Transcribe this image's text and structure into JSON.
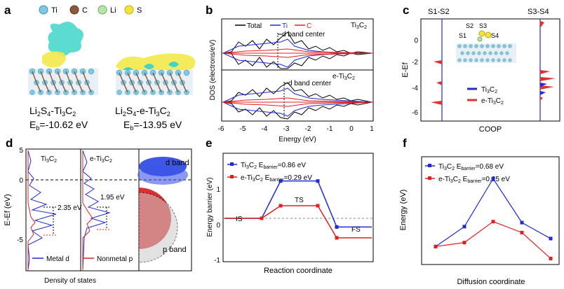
{
  "panels": {
    "a": {
      "letter": "a",
      "legend": [
        {
          "label": "Ti",
          "color": "#7ec8e3"
        },
        {
          "label": "C",
          "color": "#8b5a3c"
        },
        {
          "label": "Li",
          "color": "#b7e4a8"
        },
        {
          "label": "S",
          "color": "#f3e43a"
        }
      ],
      "structures": [
        {
          "formula_main": "Li",
          "sub1": "2",
          "mid": "S",
          "sub2": "4",
          "tail": "-Ti",
          "sub3": "3",
          "end": "C",
          "sub4": "2",
          "energy": "E",
          "energy_sub": "b",
          "energy_val": "=-10.62 eV"
        },
        {
          "formula_main": "Li",
          "sub1": "2",
          "mid": "S",
          "sub2": "4",
          "tail": "-e-Ti",
          "sub3": "3",
          "end": "C",
          "sub4": "2",
          "energy": "E",
          "energy_sub": "b",
          "energy_val": "=-13.95 eV"
        }
      ]
    },
    "b": {
      "letter": "b",
      "xlabel": "Energy (eV)",
      "ylabel": "DOS (electrons/eV)",
      "xticks": [
        "-6",
        "-5",
        "-4",
        "-3",
        "-2",
        "-1",
        "0",
        "1"
      ],
      "legend": [
        {
          "label": "Total",
          "color": "#000000"
        },
        {
          "label": "Ti",
          "color": "#1f2bd6"
        },
        {
          "label": "C",
          "color": "#e02020"
        }
      ],
      "top_label": "Ti",
      "top_sub1": "3",
      "top_label2": "C",
      "top_sub2": "2",
      "bottom_label": "e-Ti",
      "bottom_sub1": "3",
      "bottom_label2": "C",
      "bottom_sub2": "2",
      "dband_label": "d band center"
    },
    "c": {
      "letter": "c",
      "xlabel": "COOP",
      "ylabel": "E-Ef",
      "yticks": [
        "0",
        "-2",
        "-4",
        "-6"
      ],
      "headers": [
        "S1-S2",
        "S3-S4"
      ],
      "atoms": [
        "S2",
        "S3",
        "S1",
        "S4"
      ],
      "legend": [
        {
          "label": "Ti",
          "sub1": "3",
          "label2": "C",
          "sub2": "2",
          "color": "#1f2bd6"
        },
        {
          "label": "e-Ti",
          "sub1": "3",
          "label2": "C",
          "sub2": "2",
          "color": "#e03030"
        }
      ]
    },
    "d": {
      "letter": "d",
      "ylabel": "E-Ef (eV)",
      "xlabel": "Density of states",
      "yticks": [
        "5",
        "0",
        "-5"
      ],
      "col1_label": "Ti",
      "col1_sub1": "3",
      "col1_label2": "C",
      "col1_sub2": "2",
      "col2_label": "e-Ti",
      "col2_sub1": "3",
      "col2_label2": "C",
      "col2_sub2": "2",
      "gap1": "2.35 eV",
      "gap2": "1.95 eV",
      "dband": "d band",
      "pband": "p band",
      "legend": [
        {
          "label": "Metal d",
          "color": "#1f2bd6"
        },
        {
          "label": "Nonmetal p",
          "color": "#e02020"
        }
      ]
    },
    "e": {
      "letter": "e",
      "xlabel": "Reaction coordinate",
      "ylabel": "Energy barrier (eV)",
      "yticks": [
        "1",
        "0",
        "-1"
      ],
      "stage_labels": [
        "IS",
        "TS",
        "FS"
      ],
      "legend": [
        {
          "label": "Ti",
          "sub1": "3",
          "label2": "C",
          "sub2": "2",
          "barrier_txt": " E",
          "barrier_sub": "barrier",
          "val": "=0.86 eV",
          "color": "#1f2bd6"
        },
        {
          "label": "e-Ti",
          "sub1": "3",
          "label2": "C",
          "sub2": "2",
          "barrier_txt": " E",
          "barrier_sub": "barrier",
          "val": "=0.29 eV",
          "color": "#e02020"
        }
      ]
    },
    "f": {
      "letter": "f",
      "xlabel": "Diffusion coordinate",
      "ylabel": "Energy (eV)",
      "legend": [
        {
          "label": "Ti",
          "sub1": "3",
          "label2": "C",
          "sub2": "2",
          "barrier_txt": " E",
          "barrier_sub": "barrier",
          "val": "=0.68 eV",
          "color": "#1f2bd6"
        },
        {
          "label": "e-Ti",
          "sub1": "3",
          "label2": "C",
          "sub2": "2",
          "barrier_txt": " E",
          "barrier_sub": "barrier",
          "val": "=0.25 eV",
          "color": "#e02020"
        }
      ]
    }
  },
  "chart_data": [
    {
      "type": "line",
      "panel": "e",
      "x": [
        1,
        2,
        3,
        4,
        5,
        6
      ],
      "series": [
        {
          "name": "Ti3C2",
          "values": [
            0,
            0,
            0.86,
            0.86,
            -0.2,
            -0.2
          ],
          "color": "#1f2bd6"
        },
        {
          "name": "e-Ti3C2",
          "values": [
            0,
            0,
            0.29,
            0.29,
            -0.45,
            -0.45
          ],
          "color": "#e02020"
        }
      ],
      "xlabel": "Reaction coordinate",
      "ylabel": "Energy barrier (eV)",
      "ylim": [
        -1,
        1.5
      ]
    },
    {
      "type": "line",
      "panel": "f",
      "x": [
        1,
        2,
        3,
        4,
        5
      ],
      "series": [
        {
          "name": "Ti3C2",
          "values": [
            0.0,
            0.2,
            0.68,
            0.24,
            0.08
          ],
          "color": "#1f2bd6"
        },
        {
          "name": "e-Ti3C2",
          "values": [
            0.0,
            0.04,
            0.25,
            0.14,
            -0.12
          ],
          "color": "#e02020"
        }
      ],
      "xlabel": "Diffusion coordinate",
      "ylabel": "Energy (eV)",
      "xticks": [
        "1",
        "2",
        "3",
        "4",
        "5"
      ],
      "yticks": [
        "0.9",
        "0.6",
        "0.3",
        "0.0"
      ],
      "ylim": [
        -0.18,
        0.9
      ]
    }
  ]
}
